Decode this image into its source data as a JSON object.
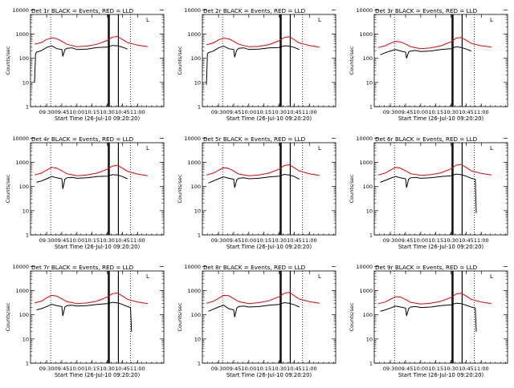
{
  "colors": {
    "events": "#000000",
    "lld": "#ee0000",
    "axis": "#000000",
    "background": "#ffffff"
  },
  "common": {
    "type": "line",
    "ylabel": "Counts/sec",
    "xlabel": "Start Time (26-Jul-10 09:20:20)",
    "y_scale": "log",
    "ylim": [
      1,
      12000
    ],
    "yticks": [
      1,
      10,
      100,
      1000,
      10000
    ],
    "yticklabels": [
      "1",
      "10",
      "100",
      "1000",
      "10000"
    ],
    "xlim_minutes": [
      -16,
      116
    ],
    "legend_marker": "L"
  },
  "chart_data": [
    {
      "title": "Det 1r BLACK = Events, RED = LLD",
      "xticklabels": [
        "09:30",
        "09:45",
        "10:00",
        "10:15",
        "10:30",
        "10:45",
        "11:00"
      ],
      "xtick_minutes": [
        0,
        15,
        30,
        45,
        60,
        75,
        90
      ],
      "vlines_dotted": [
        4,
        83
      ],
      "vlines_solid": [
        61,
        62,
        71
      ],
      "series": [
        {
          "name": "LLD",
          "color": "red",
          "x": [
            -12,
            -5,
            0,
            5,
            10,
            15,
            20,
            30,
            40,
            50,
            60,
            65,
            70,
            75,
            80,
            90,
            100
          ],
          "y": [
            380,
            450,
            600,
            700,
            650,
            500,
            380,
            300,
            320,
            380,
            550,
            750,
            800,
            600,
            450,
            350,
            300
          ]
        },
        {
          "name": "Events",
          "color": "black",
          "x": [
            -12,
            -11,
            -10,
            -5,
            0,
            5,
            10,
            15,
            16,
            18,
            20,
            25,
            30,
            40,
            50,
            60,
            65,
            70,
            75,
            80
          ],
          "y": [
            10,
            150,
            180,
            210,
            280,
            330,
            250,
            230,
            120,
            230,
            260,
            270,
            230,
            240,
            280,
            290,
            340,
            330,
            290,
            240
          ]
        }
      ]
    },
    {
      "title": "Det 2r BLACK = Events, RED = LLD",
      "xticklabels": [
        "09:30",
        "09:45",
        "10:00",
        "10:15",
        "10:30",
        "10:45",
        "11:00"
      ],
      "xtick_minutes": [
        0,
        15,
        30,
        45,
        60,
        75,
        90
      ],
      "vlines_dotted": [
        4,
        83
      ],
      "vlines_solid": [
        61,
        62,
        71
      ],
      "series": [
        {
          "name": "LLD",
          "color": "red",
          "x": [
            -12,
            -5,
            0,
            5,
            10,
            15,
            20,
            30,
            40,
            50,
            60,
            65,
            70,
            75,
            80,
            90,
            100
          ],
          "y": [
            360,
            430,
            580,
            680,
            640,
            500,
            380,
            300,
            310,
            370,
            530,
            720,
            780,
            590,
            430,
            340,
            290
          ]
        },
        {
          "name": "Events",
          "color": "black",
          "x": [
            -12,
            -11,
            -10,
            -5,
            0,
            5,
            10,
            15,
            16,
            18,
            20,
            25,
            30,
            40,
            50,
            60,
            65,
            70,
            75,
            80
          ],
          "y": [
            8,
            150,
            170,
            200,
            270,
            320,
            250,
            230,
            110,
            220,
            260,
            270,
            230,
            240,
            270,
            280,
            330,
            320,
            280,
            230
          ]
        }
      ]
    },
    {
      "title": "Det 3r BLACK = Events, RED = LLD",
      "xticklabels": [
        "09:30",
        "09:45",
        "10:00",
        "10:15",
        "10:30",
        "10:45",
        "11:00"
      ],
      "xtick_minutes": [
        0,
        15,
        30,
        45,
        60,
        75,
        90
      ],
      "vlines_dotted": [
        4,
        83
      ],
      "vlines_solid": [
        61,
        62,
        71
      ],
      "series": [
        {
          "name": "LLD",
          "color": "red",
          "x": [
            -12,
            -5,
            0,
            5,
            10,
            15,
            20,
            30,
            40,
            50,
            60,
            65,
            70,
            75,
            80,
            90,
            100
          ],
          "y": [
            280,
            330,
            420,
            500,
            480,
            390,
            300,
            250,
            270,
            330,
            480,
            680,
            720,
            560,
            410,
            330,
            290
          ]
        },
        {
          "name": "Events",
          "color": "black",
          "x": [
            -10,
            -5,
            0,
            5,
            10,
            15,
            16,
            18,
            20,
            25,
            30,
            40,
            50,
            60,
            65,
            70,
            75,
            80
          ],
          "y": [
            140,
            170,
            200,
            230,
            200,
            180,
            100,
            180,
            200,
            210,
            190,
            200,
            230,
            250,
            300,
            280,
            240,
            200
          ]
        }
      ]
    },
    {
      "title": "Det 4r BLACK = Events, RED = LLD",
      "xticklabels": [
        "09:30",
        "09:45",
        "10:00",
        "10:15",
        "10:30",
        "10:45",
        "11:00"
      ],
      "xtick_minutes": [
        0,
        15,
        30,
        45,
        60,
        75,
        90
      ],
      "vlines_dotted": [
        4,
        83
      ],
      "vlines_solid": [
        61,
        62,
        71
      ],
      "series": [
        {
          "name": "LLD",
          "color": "red",
          "x": [
            -12,
            -5,
            0,
            5,
            10,
            15,
            20,
            30,
            40,
            50,
            60,
            65,
            70,
            75,
            80,
            90,
            100
          ],
          "y": [
            300,
            360,
            480,
            620,
            580,
            450,
            340,
            280,
            300,
            360,
            520,
            700,
            760,
            580,
            430,
            330,
            280
          ]
        },
        {
          "name": "Events",
          "color": "black",
          "x": [
            -10,
            -5,
            0,
            5,
            10,
            15,
            16,
            18,
            20,
            25,
            30,
            40,
            50,
            60,
            65,
            70,
            75,
            80
          ],
          "y": [
            150,
            170,
            210,
            260,
            230,
            210,
            80,
            200,
            230,
            240,
            220,
            230,
            260,
            270,
            310,
            300,
            260,
            210
          ]
        }
      ]
    },
    {
      "title": "Det 5r BLACK = Events, RED = LLD",
      "xticklabels": [
        "09:30",
        "09:45",
        "10:00",
        "10:15",
        "10:30",
        "10:45",
        "11:00"
      ],
      "xtick_minutes": [
        0,
        15,
        30,
        45,
        60,
        75,
        90
      ],
      "vlines_dotted": [
        4,
        83
      ],
      "vlines_solid": [
        61,
        62,
        71
      ],
      "series": [
        {
          "name": "LLD",
          "color": "red",
          "x": [
            -12,
            -5,
            0,
            5,
            10,
            15,
            20,
            30,
            40,
            50,
            60,
            65,
            70,
            75,
            80,
            90,
            100
          ],
          "y": [
            300,
            360,
            470,
            600,
            560,
            440,
            330,
            280,
            300,
            360,
            520,
            740,
            800,
            600,
            440,
            340,
            290
          ]
        },
        {
          "name": "Events",
          "color": "black",
          "x": [
            -10,
            -5,
            0,
            5,
            10,
            15,
            16,
            18,
            20,
            25,
            30,
            40,
            50,
            60,
            65,
            70,
            75,
            80
          ],
          "y": [
            140,
            170,
            210,
            250,
            220,
            200,
            90,
            190,
            220,
            230,
            210,
            220,
            250,
            270,
            320,
            300,
            260,
            200
          ]
        }
      ]
    },
    {
      "title": "Det 6r BLACK = Events, RED = LLD",
      "xticklabels": [
        "09:30",
        "09:45",
        "10:00",
        "10:15",
        "10:30",
        "10:45",
        "11:00"
      ],
      "xtick_minutes": [
        0,
        15,
        30,
        45,
        60,
        75,
        90
      ],
      "vlines_dotted": [
        4,
        83
      ],
      "vlines_solid": [
        61,
        62,
        71
      ],
      "series": [
        {
          "name": "LLD",
          "color": "red",
          "x": [
            -12,
            -5,
            0,
            5,
            10,
            15,
            20,
            30,
            40,
            50,
            60,
            65,
            70,
            75,
            80,
            90,
            100
          ],
          "y": [
            300,
            360,
            480,
            620,
            580,
            450,
            340,
            290,
            310,
            370,
            540,
            760,
            820,
            620,
            450,
            350,
            300
          ]
        },
        {
          "name": "Events",
          "color": "black",
          "x": [
            -10,
            -5,
            0,
            5,
            10,
            15,
            16,
            18,
            20,
            25,
            30,
            40,
            50,
            60,
            65,
            70,
            75,
            80,
            84,
            85
          ],
          "y": [
            150,
            180,
            220,
            260,
            230,
            210,
            90,
            200,
            230,
            240,
            220,
            230,
            260,
            280,
            330,
            310,
            270,
            220,
            200,
            8
          ]
        }
      ]
    },
    {
      "title": "Det 7r BLACK = Events, RED = LLD",
      "xticklabels": [
        "09:30",
        "09:45",
        "10:00",
        "10:15",
        "10:30",
        "10:45",
        "11:00"
      ],
      "xtick_minutes": [
        0,
        15,
        30,
        45,
        60,
        75,
        90
      ],
      "vlines_dotted": [
        4,
        83
      ],
      "vlines_solid": [
        61,
        62,
        71
      ],
      "series": [
        {
          "name": "LLD",
          "color": "red",
          "x": [
            -12,
            -5,
            0,
            5,
            10,
            15,
            20,
            30,
            40,
            50,
            60,
            65,
            70,
            75,
            80,
            90,
            100
          ],
          "y": [
            310,
            370,
            500,
            640,
            600,
            460,
            350,
            290,
            310,
            370,
            540,
            750,
            800,
            600,
            440,
            340,
            290
          ]
        },
        {
          "name": "Events",
          "color": "black",
          "x": [
            -10,
            -5,
            0,
            5,
            10,
            15,
            16,
            18,
            20,
            25,
            30,
            40,
            50,
            60,
            65,
            70,
            75,
            80,
            83,
            84
          ],
          "y": [
            160,
            180,
            220,
            270,
            240,
            220,
            90,
            210,
            240,
            250,
            230,
            240,
            270,
            290,
            330,
            310,
            270,
            220,
            200,
            20
          ]
        }
      ]
    },
    {
      "title": "Det 8r BLACK = Events, RED = LLD",
      "xticklabels": [
        "09:30",
        "09:45",
        "10:00",
        "10:15",
        "10:30",
        "10:45",
        "11:00"
      ],
      "xtick_minutes": [
        0,
        15,
        30,
        45,
        60,
        75,
        90
      ],
      "vlines_dotted": [
        4,
        83
      ],
      "vlines_solid": [
        61,
        62,
        71
      ],
      "series": [
        {
          "name": "LLD",
          "color": "red",
          "x": [
            -12,
            -5,
            0,
            5,
            10,
            15,
            20,
            30,
            40,
            50,
            60,
            65,
            70,
            75,
            80,
            90,
            100
          ],
          "y": [
            300,
            360,
            480,
            640,
            620,
            470,
            350,
            290,
            320,
            380,
            560,
            780,
            840,
            620,
            450,
            350,
            300
          ]
        },
        {
          "name": "Events",
          "color": "black",
          "x": [
            -10,
            -5,
            0,
            5,
            10,
            15,
            16,
            18,
            20,
            25,
            30,
            40,
            50,
            60,
            65,
            70,
            75,
            80
          ],
          "y": [
            140,
            170,
            210,
            250,
            180,
            160,
            80,
            190,
            220,
            230,
            210,
            220,
            250,
            270,
            320,
            300,
            260,
            210
          ]
        }
      ]
    },
    {
      "title": "Det 9r BLACK = Events, RED = LLD",
      "xticklabels": [
        "09:30",
        "09:45",
        "10:00",
        "10:15",
        "10:30",
        "10:45",
        "11:00"
      ],
      "xtick_minutes": [
        0,
        15,
        30,
        45,
        60,
        75,
        90
      ],
      "vlines_dotted": [
        4,
        83
      ],
      "vlines_solid": [
        61,
        62,
        71
      ],
      "series": [
        {
          "name": "LLD",
          "color": "red",
          "x": [
            -12,
            -5,
            0,
            5,
            10,
            15,
            20,
            30,
            40,
            50,
            60,
            65,
            70,
            75,
            80,
            90,
            100
          ],
          "y": [
            290,
            340,
            440,
            560,
            540,
            430,
            330,
            280,
            300,
            360,
            520,
            730,
            780,
            600,
            440,
            340,
            290
          ]
        },
        {
          "name": "Events",
          "color": "black",
          "x": [
            -10,
            -5,
            0,
            5,
            10,
            15,
            16,
            18,
            20,
            25,
            30,
            40,
            50,
            60,
            65,
            70,
            75,
            80,
            84,
            85
          ],
          "y": [
            140,
            160,
            190,
            230,
            210,
            190,
            90,
            180,
            210,
            220,
            200,
            210,
            240,
            260,
            300,
            290,
            250,
            210,
            190,
            20
          ]
        }
      ]
    }
  ]
}
